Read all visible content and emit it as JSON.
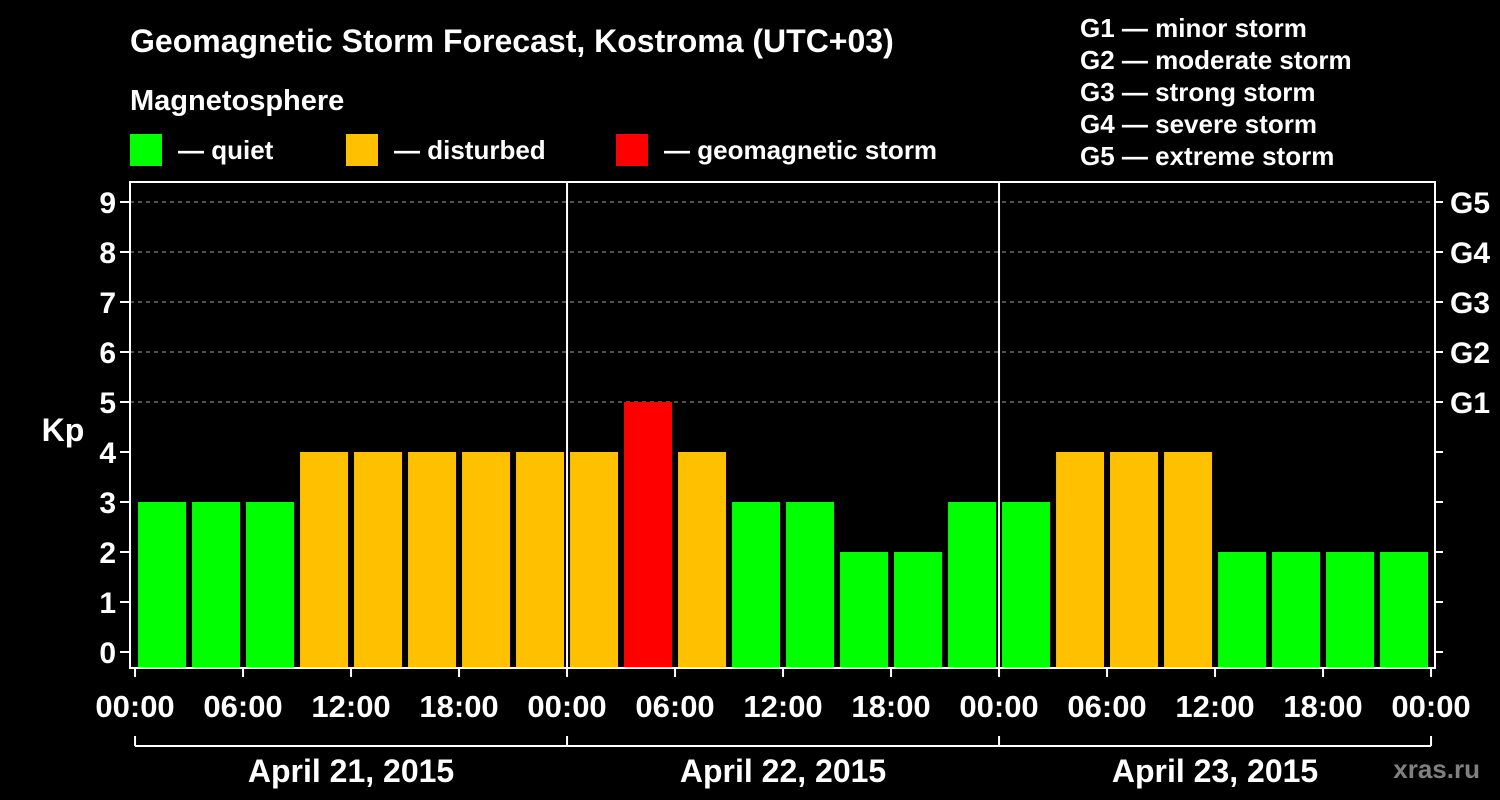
{
  "colors": {
    "background": "#000000",
    "axis": "#ffffff",
    "grid": "#808080",
    "watermark": "#808080"
  },
  "watermark": "xras.ru",
  "chart_data": {
    "type": "bar",
    "title": "Geomagnetic Storm Forecast, Kostroma (UTC+03)",
    "legend": {
      "heading": "Magnetosphere",
      "items": [
        {
          "label": "— quiet",
          "color": "#00ff00"
        },
        {
          "label": "— disturbed",
          "color": "#ffc000"
        },
        {
          "label": "— geomagnetic storm",
          "color": "#ff0000"
        }
      ]
    },
    "storm_scale": [
      "G1 — minor storm",
      "G2 — moderate storm",
      "G3 — strong storm",
      "G4 — severe storm",
      "G5 — extreme storm"
    ],
    "ylabel": "Kp",
    "ylim": [
      -0.32,
      9.4
    ],
    "yticks": [
      0,
      1,
      2,
      3,
      4,
      5,
      6,
      7,
      8,
      9
    ],
    "right_ticks": [
      {
        "value": 5,
        "label": "G1"
      },
      {
        "value": 6,
        "label": "G2"
      },
      {
        "value": 7,
        "label": "G3"
      },
      {
        "value": 8,
        "label": "G4"
      },
      {
        "value": 9,
        "label": "G5"
      }
    ],
    "grid": true,
    "xlim_hours": [
      -0.28,
      72.22
    ],
    "x_ticks": [
      {
        "hour": 0,
        "label": "00:00"
      },
      {
        "hour": 6,
        "label": "06:00"
      },
      {
        "hour": 12,
        "label": "12:00"
      },
      {
        "hour": 18,
        "label": "18:00"
      },
      {
        "hour": 24,
        "label": "00:00"
      },
      {
        "hour": 30,
        "label": "06:00"
      },
      {
        "hour": 36,
        "label": "12:00"
      },
      {
        "hour": 42,
        "label": "18:00"
      },
      {
        "hour": 48,
        "label": "00:00"
      },
      {
        "hour": 54,
        "label": "06:00"
      },
      {
        "hour": 60,
        "label": "12:00"
      },
      {
        "hour": 66,
        "label": "18:00"
      },
      {
        "hour": 72,
        "label": "00:00"
      }
    ],
    "days": [
      {
        "start_hour": 0,
        "end_hour": 24,
        "label": "April 21, 2015"
      },
      {
        "start_hour": 24,
        "end_hour": 48,
        "label": "April 22, 2015"
      },
      {
        "start_hour": 48,
        "end_hour": 72,
        "label": "April 23, 2015"
      }
    ],
    "bar_interval_hours": 3,
    "values": [
      3,
      3,
      3,
      4,
      4,
      4,
      4,
      4,
      4,
      5,
      4,
      3,
      3,
      2,
      2,
      3,
      3,
      4,
      4,
      4,
      2,
      2,
      2,
      2
    ],
    "disturbed_min": 4,
    "storm_min": 5
  }
}
